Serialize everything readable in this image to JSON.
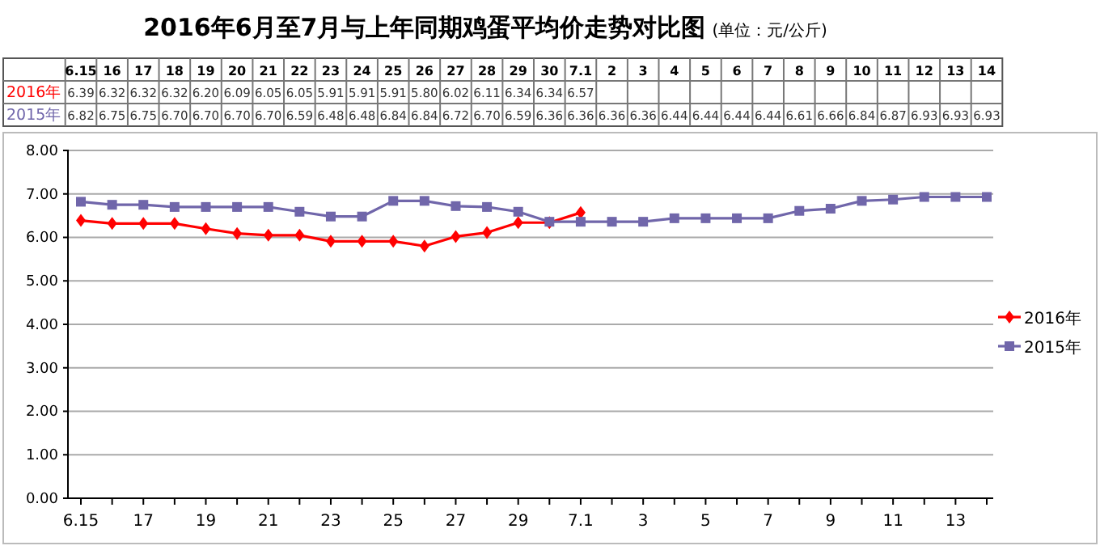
{
  "chart_data": {
    "type": "line",
    "title": "2016年6月至7月与上年同期鸡蛋平均价走势对比图",
    "subtitle": "(单位：元/公斤)",
    "categories": [
      "6.15",
      "16",
      "17",
      "18",
      "19",
      "20",
      "21",
      "22",
      "23",
      "24",
      "25",
      "26",
      "27",
      "28",
      "29",
      "30",
      "7.1",
      "2",
      "3",
      "4",
      "5",
      "6",
      "7",
      "8",
      "9",
      "10",
      "11",
      "12",
      "13",
      "14"
    ],
    "series": [
      {
        "name": "2016年",
        "color": "#ff0000",
        "marker": "diamond",
        "values": [
          6.39,
          6.32,
          6.32,
          6.32,
          6.2,
          6.09,
          6.05,
          6.05,
          5.91,
          5.91,
          5.91,
          5.8,
          6.02,
          6.11,
          6.34,
          6.34,
          6.57,
          null,
          null,
          null,
          null,
          null,
          null,
          null,
          null,
          null,
          null,
          null,
          null,
          null
        ],
        "value_labels": [
          "6.39",
          "6.32",
          "6.32",
          "6.32",
          "6.20",
          "6.09",
          "6.05",
          "6.05",
          "5.91",
          "5.91",
          "5.91",
          "5.80",
          "6.02",
          "6.11",
          "6.34",
          "6.34",
          "6.57",
          null,
          null,
          null,
          null,
          null,
          null,
          null,
          null,
          null,
          null,
          null,
          null,
          null
        ]
      },
      {
        "name": "2015年",
        "color": "#7066aa",
        "marker": "square",
        "values": [
          6.82,
          6.75,
          6.75,
          6.7,
          6.7,
          6.7,
          6.7,
          6.59,
          6.48,
          6.48,
          6.84,
          6.84,
          6.72,
          6.7,
          6.59,
          6.36,
          6.36,
          6.36,
          6.36,
          6.44,
          6.44,
          6.44,
          6.44,
          6.61,
          6.66,
          6.84,
          6.87,
          6.93,
          6.93,
          6.93
        ],
        "value_labels": [
          "6.82",
          "6.75",
          "6.75",
          "6.70",
          "6.70",
          "6.70",
          "6.70",
          "6.59",
          "6.48",
          "6.48",
          "6.84",
          "6.84",
          "6.72",
          "6.70",
          "6.59",
          "6.36",
          "6.36",
          "6.36",
          "6.36",
          "6.44",
          "6.44",
          "6.44",
          "6.44",
          "6.61",
          "6.66",
          "6.84",
          "6.87",
          "6.93",
          "6.93",
          "6.93"
        ]
      }
    ],
    "ylim": [
      0,
      8
    ],
    "yticks": [
      {
        "value": 0,
        "label": "0.00"
      },
      {
        "value": 1,
        "label": "1.00"
      },
      {
        "value": 2,
        "label": "2.00"
      },
      {
        "value": 3,
        "label": "3.00"
      },
      {
        "value": 4,
        "label": "4.00"
      },
      {
        "value": 5,
        "label": "5.00"
      },
      {
        "value": 6,
        "label": "6.00"
      },
      {
        "value": 7,
        "label": "7.00"
      },
      {
        "value": 8,
        "label": "8.00"
      }
    ],
    "grid": "y",
    "legend": "right"
  }
}
